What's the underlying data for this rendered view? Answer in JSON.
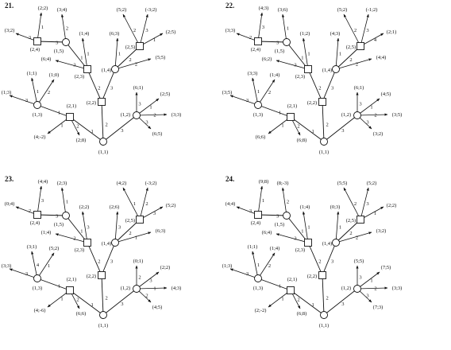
{
  "panels": [
    {
      "title": "21.",
      "node_labels": [
        "(1,1)",
        "(2,1)",
        "(1,3)",
        "(1,2)",
        "(2,2)",
        "(1,4)",
        "(2,3)",
        "(2,5)",
        "(1,5)",
        "(2,4)"
      ],
      "edge_labels": [
        "1",
        "2",
        "3",
        "1",
        "2",
        "3",
        "1",
        "2",
        "3",
        "1",
        "2",
        "3",
        "1",
        "2",
        "3",
        "1",
        "2",
        "3",
        "1",
        "2",
        "3",
        "1",
        "2",
        "3",
        "1",
        "2",
        "3",
        "1",
        "2"
      ],
      "payoffs": {
        "n2": [
          "(4;-2)",
          "(2;8)"
        ],
        "n3": [
          "(1;3)",
          "(1;1)",
          "(1;0)"
        ],
        "n4": [
          "(6;1)",
          "(2;5)",
          "(3;3)",
          "(6;5)"
        ],
        "n6": [
          "(6;3)",
          "(5;5)"
        ],
        "n7": [
          "(6;4)",
          "(1;4)"
        ],
        "n8": [
          "(5;2)",
          "(-3;2)",
          "(2;5)"
        ],
        "n9": [
          "(3;4)"
        ],
        "n10": [
          "(3;2)",
          "(2;2)"
        ]
      }
    },
    {
      "title": "22.",
      "node_labels": [
        "(1,1)",
        "(2,1)",
        "(1,3)",
        "(1,2)",
        "(2,2)",
        "(1,4)",
        "(2,3)",
        "(2,5)",
        "(1,5)",
        "(2,4)"
      ],
      "edge_labels": [
        "1",
        "2",
        "3",
        "1",
        "2",
        "3",
        "1",
        "2",
        "3",
        "1",
        "2",
        "3",
        "1",
        "2",
        "3",
        "1",
        "2",
        "3",
        "1",
        "2",
        "3",
        "1",
        "2",
        "3",
        "4",
        "1",
        "2",
        "3",
        "1"
      ],
      "payoffs": {
        "n2": [
          "(6;6)",
          "(6;8)"
        ],
        "n3": [
          "(3;5)",
          "(3;3)",
          "(1;4)"
        ],
        "n4": [
          "(6;1)",
          "(4;5)",
          "(3;5)",
          "(3;2)"
        ],
        "n6": [
          "(4;3)",
          "(4;4)"
        ],
        "n7": [
          "(6;2)",
          "(1;2)"
        ],
        "n8": [
          "(5;2)",
          "(-1;2)",
          "(2;1)"
        ],
        "n9": [
          "(3;6)"
        ],
        "n10": [
          "(3;3)",
          "(4;3)"
        ]
      }
    },
    {
      "title": "23.",
      "node_labels": [
        "(1,1)",
        "(2,1)",
        "(1,3)",
        "(1,2)",
        "(2,2)",
        "(1,4)",
        "(2,3)",
        "(2,5)",
        "(1,5)",
        "(2,4)"
      ],
      "edge_labels": [
        "1",
        "2",
        "3",
        "1",
        "2",
        "3",
        "1",
        "2",
        "3",
        "1",
        "2",
        "3",
        "4",
        "1",
        "2",
        "3",
        "1",
        "2",
        "3",
        "1",
        "2",
        "3",
        "1",
        "2",
        "3",
        "1",
        "2",
        "3",
        "1"
      ],
      "payoffs": {
        "n2": [
          "(4;-6)",
          "(6;6)"
        ],
        "n3": [
          "(3;3)",
          "(3;1)",
          "(5;2)"
        ],
        "n4": [
          "(0;1)",
          "(2;2)",
          "(4;3)",
          "(4;5)"
        ],
        "n6": [
          "(2;6)",
          "(6;3)"
        ],
        "n7": [
          "(1;4)",
          "(2;2)"
        ],
        "n8": [
          "(4;2)",
          "(-3;2)",
          "(5;2)"
        ],
        "n9": [
          "(2;3)"
        ],
        "n10": [
          "(0;4)",
          "(4;4)"
        ]
      }
    },
    {
      "title": "24.",
      "node_labels": [
        "(1,1)",
        "(2,1)",
        "(1,3)",
        "(1,2)",
        "(2,2)",
        "(1,4)",
        "(2,3)",
        "(2,5)",
        "(1,5)",
        "(2,4)"
      ],
      "edge_labels": [
        "1",
        "2",
        "3",
        "1",
        "2",
        "3",
        "1",
        "2",
        "3",
        "1",
        "2",
        "3",
        "1",
        "2",
        "3",
        "1",
        "2",
        "3",
        "1",
        "2",
        "3",
        "1",
        "2",
        "3",
        "1",
        "2",
        "3",
        "1",
        "2"
      ],
      "payoffs": {
        "n2": [
          "(2;-2)",
          "(6;8)"
        ],
        "n3": [
          "(1;3)",
          "(1;1)",
          "(1;4)"
        ],
        "n4": [
          "(5;5)",
          "(7;5)",
          "(3;3)",
          "(7;3)"
        ],
        "n6": [
          "(0;3)",
          "(3;2)"
        ],
        "n7": [
          "(6;4)",
          "(1;4)"
        ],
        "n8": [
          "(5;5)",
          "(5;2)",
          "(2;2)"
        ],
        "n9": [
          "(8;-3)"
        ],
        "n10": [
          "(4;4)",
          "(9;8)"
        ]
      }
    }
  ]
}
